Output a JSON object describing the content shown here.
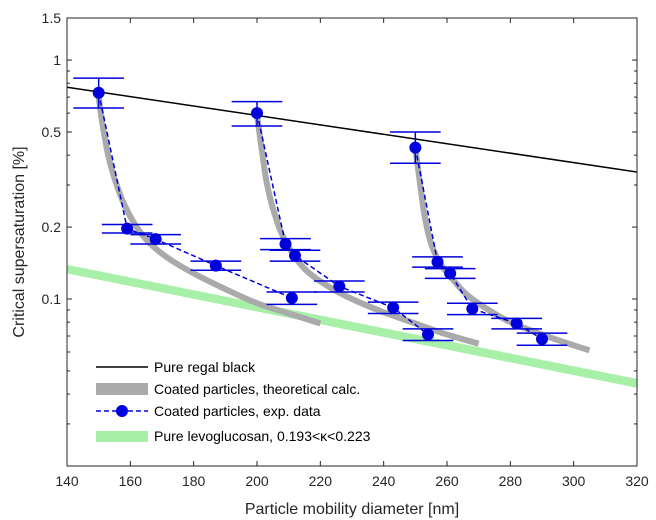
{
  "chart_data": {
    "type": "line",
    "title": "",
    "xlabel": "Particle mobility diameter [nm]",
    "ylabel": "Critical supersaturation [%]",
    "xlim": [
      140,
      320
    ],
    "ylim": [
      0.02,
      1.5
    ],
    "yscale": "log",
    "xticks": [
      140,
      160,
      180,
      200,
      220,
      240,
      260,
      280,
      300,
      320
    ],
    "yticks": [
      {
        "value": 0.1,
        "label": "0.1"
      },
      {
        "value": 0.2,
        "label": "0.2"
      },
      {
        "value": 0.5,
        "label": "0.5"
      },
      {
        "value": 1,
        "label": "1"
      },
      {
        "value": 1.5,
        "label": "1.5"
      }
    ],
    "grid": false,
    "legend_position": "bottom-left",
    "legend": [
      {
        "label": "Pure regal black",
        "style": "thin-line",
        "color": "#000000"
      },
      {
        "label": "Coated particles, theoretical calc.",
        "style": "thick-band",
        "color": "#aaaaaa"
      },
      {
        "label": "Coated particles, exp. data",
        "style": "dashed-marker",
        "color": "#0000dd"
      },
      {
        "label": "Pure levoglucosan, 0.193<κ<0.223",
        "style": "band",
        "color": "#a8f0a8"
      }
    ],
    "series": [
      {
        "name": "Pure regal black",
        "kind": "line",
        "x": [
          140,
          320
        ],
        "y": [
          0.77,
          0.34
        ]
      },
      {
        "name": "Pure levoglucosan, 0.193<κ<0.223",
        "kind": "band",
        "x": [
          140,
          320
        ],
        "y_low": [
          0.128,
          0.0425
        ],
        "y_high": [
          0.139,
          0.0463
        ]
      },
      {
        "name": "Coated particles, theoretical calc.",
        "kind": "curve-group",
        "curves": [
          {
            "x": [
              150,
              151,
              152,
              153,
              155,
              158,
              162,
              166,
              172,
              180,
              190,
              200,
              210,
              220
            ],
            "y": [
              0.7,
              0.56,
              0.47,
              0.4,
              0.32,
              0.25,
              0.2,
              0.172,
              0.148,
              0.128,
              0.11,
              0.096,
              0.087,
              0.079
            ]
          },
          {
            "x": [
              200,
              201,
              202,
              203,
              205,
              208,
              212,
              216,
              222,
              230,
              240,
              250,
              260,
              270
            ],
            "y": [
              0.59,
              0.47,
              0.38,
              0.31,
              0.24,
              0.185,
              0.15,
              0.13,
              0.114,
              0.1,
              0.088,
              0.079,
              0.071,
              0.065
            ]
          },
          {
            "x": [
              250,
              251,
              252,
              253,
              255,
              258,
              262,
              266,
              272,
              280,
              290,
              300,
              305
            ],
            "y": [
              0.43,
              0.34,
              0.27,
              0.22,
              0.17,
              0.14,
              0.12,
              0.105,
              0.092,
              0.08,
              0.071,
              0.064,
              0.061
            ]
          }
        ]
      },
      {
        "name": "Coated particles, exp. data",
        "kind": "errorbar",
        "groups": [
          {
            "x": [
              150,
              159,
              168,
              187,
              211
            ],
            "y": [
              0.73,
              0.197,
              0.178,
              0.138,
              0.101
            ],
            "y_err_low": [
              0.1,
              0.008,
              0.008,
              0.006,
              0.006
            ],
            "y_err_high": [
              0.11,
              0.008,
              0.008,
              0.006,
              0.006
            ],
            "x_err": [
              8,
              8,
              8,
              8,
              8
            ]
          },
          {
            "x": [
              200,
              209,
              212,
              226,
              243,
              254
            ],
            "y": [
              0.6,
              0.17,
              0.152,
              0.113,
              0.092,
              0.071
            ],
            "y_err_low": [
              0.07,
              0.009,
              0.008,
              0.006,
              0.005,
              0.004
            ],
            "y_err_high": [
              0.07,
              0.009,
              0.008,
              0.006,
              0.005,
              0.004
            ],
            "x_err": [
              8,
              8,
              8,
              8,
              8,
              8
            ]
          },
          {
            "x": [
              250,
              257,
              261,
              268,
              282,
              290
            ],
            "y": [
              0.43,
              0.143,
              0.128,
              0.091,
              0.079,
              0.068
            ],
            "y_err_low": [
              0.06,
              0.007,
              0.006,
              0.005,
              0.004,
              0.004
            ],
            "y_err_high": [
              0.07,
              0.007,
              0.006,
              0.005,
              0.004,
              0.004
            ],
            "x_err": [
              8,
              8,
              8,
              8,
              8,
              8
            ]
          }
        ]
      }
    ]
  }
}
